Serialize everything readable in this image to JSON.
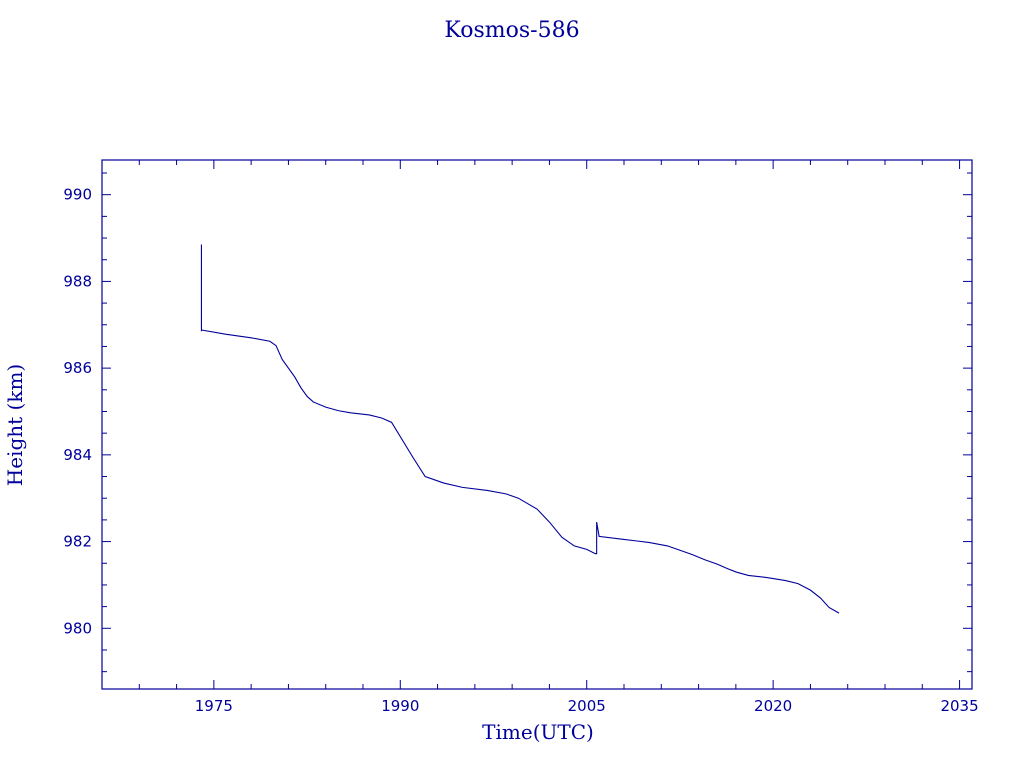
{
  "chart_data": {
    "type": "line",
    "title": "Kosmos-586",
    "xlabel": "Time(UTC)",
    "ylabel": "Height (km)",
    "xlim": [
      1966,
      2036
    ],
    "ylim": [
      978.6,
      990.8
    ],
    "xticks": [
      1975,
      1990,
      2005,
      2020,
      2035
    ],
    "xtick_labels": [
      "1975",
      "1990",
      "2005",
      "2020",
      "2035"
    ],
    "yticks": [
      980,
      982,
      984,
      986,
      988,
      990
    ],
    "ytick_labels": [
      "980",
      "982",
      "984",
      "986",
      "988",
      "990"
    ],
    "series": [
      {
        "color": "#00009a",
        "x": [
          1974.0,
          1974.0,
          1974.0,
          1976.0,
          1978.0,
          1979.5,
          1980.0,
          1980.5,
          1981.5,
          1982.0,
          1982.5,
          1983.0,
          1984.0,
          1985.0,
          1986.0,
          1987.5,
          1988.5,
          1989.3,
          1991.0,
          1992.0,
          1993.5,
          1995.0,
          1997.0,
          1998.5,
          1999.5,
          2001.0,
          2002.0,
          2003.0,
          2004.0,
          2005.0,
          2005.7,
          2005.8,
          2005.8,
          2006.0,
          2008.0,
          2010.0,
          2011.5,
          2012.5,
          2013.5,
          2014.5,
          2015.5,
          2016.3,
          2017.0,
          2018.0,
          2019.5,
          2021.0,
          2022.0,
          2023.0,
          2023.8,
          2024.5,
          2025.3
        ],
        "y": [
          988.85,
          986.85,
          986.88,
          986.78,
          986.7,
          986.62,
          986.52,
          986.2,
          985.8,
          985.55,
          985.35,
          985.22,
          985.1,
          985.02,
          984.97,
          984.92,
          984.85,
          984.75,
          983.95,
          983.5,
          983.35,
          983.25,
          983.18,
          983.1,
          983.0,
          982.75,
          982.45,
          982.1,
          981.9,
          981.82,
          981.72,
          981.72,
          982.45,
          982.12,
          982.05,
          981.98,
          981.9,
          981.8,
          981.7,
          981.58,
          981.48,
          981.38,
          981.3,
          981.22,
          981.17,
          981.1,
          981.03,
          980.88,
          980.7,
          980.48,
          980.35
        ]
      }
    ],
    "grid": false,
    "legend": "none"
  }
}
